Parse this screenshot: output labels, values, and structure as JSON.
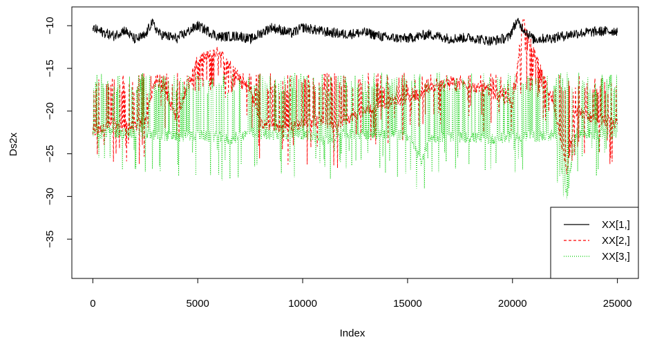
{
  "chart_data": {
    "type": "line",
    "xlabel": "Index",
    "ylabel": "Ds2x",
    "xlim": [
      -1000,
      26000
    ],
    "ylim": [
      -39.6,
      -7.8
    ],
    "x_ticks": [
      0,
      5000,
      10000,
      15000,
      20000,
      25000
    ],
    "y_ticks": [
      -35,
      -30,
      -25,
      -20,
      -15,
      -10
    ],
    "n_points": 25000,
    "legend_position": "bottom-right",
    "series": [
      {
        "name": "XX[1,]",
        "color": "#000000",
        "line_style": "solid",
        "x": [
          0,
          500,
          1000,
          1500,
          2000,
          2500,
          2800,
          3200,
          4000,
          5000,
          6000,
          7000,
          7500,
          8500,
          9500,
          10000,
          11000,
          12000,
          13000,
          14000,
          15000,
          16000,
          17000,
          18000,
          19000,
          19800,
          20200,
          21000,
          22000,
          23000,
          24000,
          25000
        ],
        "values": [
          -10.3,
          -10.8,
          -11.2,
          -10.5,
          -11.6,
          -11.2,
          -9.6,
          -11.0,
          -11.5,
          -10.0,
          -11.3,
          -11.2,
          -11.6,
          -10.2,
          -10.9,
          -10.2,
          -10.7,
          -11.0,
          -10.8,
          -11.4,
          -11.5,
          -11.0,
          -11.5,
          -11.4,
          -11.8,
          -11.4,
          -9.5,
          -11.6,
          -11.4,
          -10.9,
          -10.7,
          -10.6
        ]
      },
      {
        "name": "XX[2,]",
        "color": "#ff0000",
        "line_style": "dashed",
        "x": [
          0,
          500,
          1000,
          1500,
          2000,
          2500,
          3000,
          3500,
          4000,
          4500,
          5000,
          5500,
          6000,
          6500,
          7000,
          7500,
          8000,
          9000,
          10000,
          11000,
          11500,
          12000,
          13000,
          14000,
          15000,
          16000,
          17000,
          18000,
          19000,
          20000,
          20500,
          21000,
          22000,
          22600,
          23000,
          24000,
          25000
        ],
        "values": [
          -22.5,
          -22.0,
          -21.6,
          -21.8,
          -21.9,
          -21.0,
          -16.0,
          -18.0,
          -21.0,
          -17.0,
          -14.0,
          -13.5,
          -13.0,
          -14.5,
          -16.0,
          -17.5,
          -21.5,
          -22.0,
          -21.5,
          -21.0,
          -22.0,
          -21.0,
          -20.0,
          -19.0,
          -18.5,
          -17.5,
          -16.5,
          -17.0,
          -18.0,
          -19.0,
          -9.5,
          -13.0,
          -19.5,
          -27.0,
          -20.0,
          -21.0,
          -21.5
        ]
      },
      {
        "name": "XX[3,]",
        "color": "#00cd00",
        "line_style": "dotted",
        "x": [
          0,
          500,
          1000,
          1500,
          2000,
          2500,
          3000,
          3500,
          4000,
          4500,
          5000,
          5500,
          6000,
          6500,
          7000,
          7500,
          8000,
          9000,
          10000,
          11000,
          11500,
          12000,
          13000,
          14000,
          15000,
          15700,
          16000,
          17000,
          18000,
          19000,
          20000,
          21000,
          22000,
          22600,
          23000,
          24000,
          25000
        ],
        "values": [
          -22.6,
          -22.6,
          -22.5,
          -22.6,
          -22.6,
          -22.7,
          -22.8,
          -22.9,
          -23.0,
          -22.9,
          -22.8,
          -23.0,
          -23.0,
          -23.4,
          -22.9,
          -22.6,
          -22.7,
          -22.8,
          -22.7,
          -23.4,
          -23.0,
          -22.7,
          -22.7,
          -22.6,
          -22.9,
          -26.0,
          -23.2,
          -23.0,
          -23.1,
          -23.3,
          -23.0,
          -23.0,
          -22.8,
          -30.0,
          -22.6,
          -22.7,
          -22.8
        ]
      }
    ]
  }
}
